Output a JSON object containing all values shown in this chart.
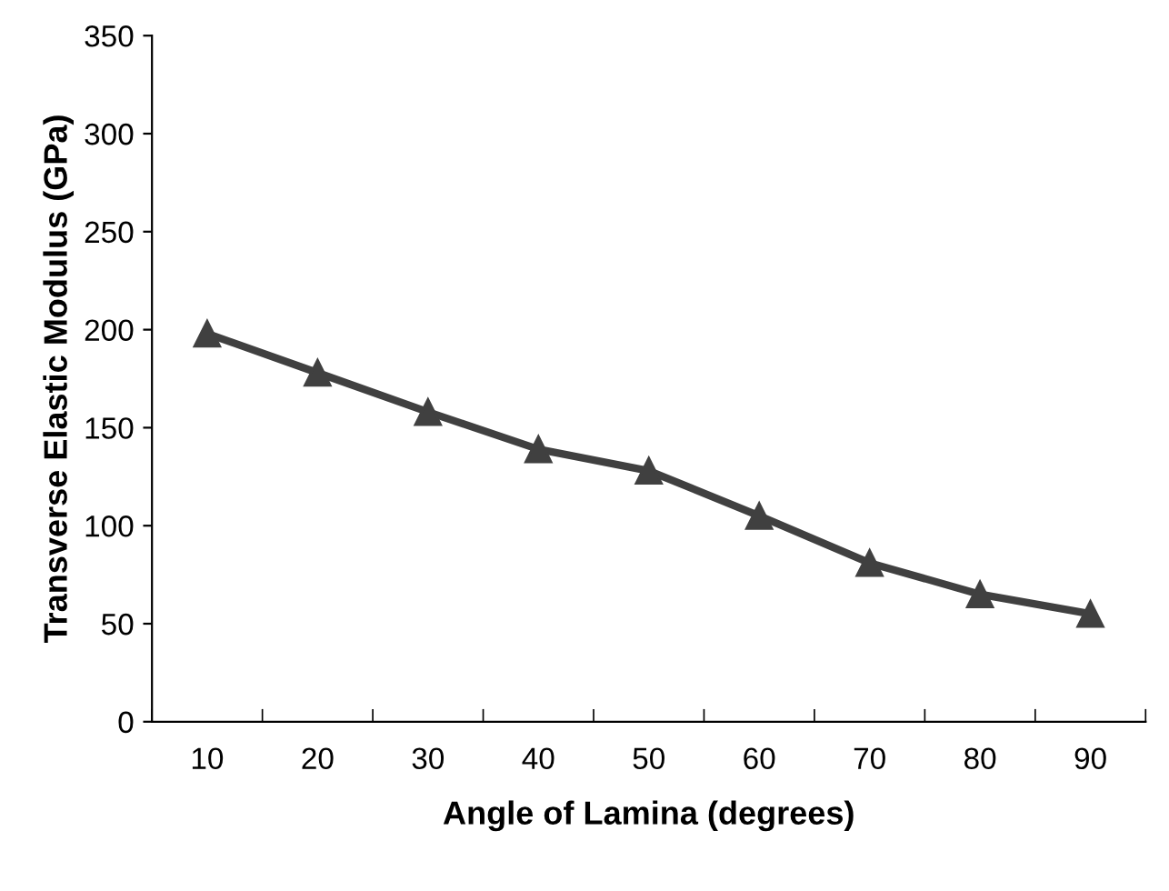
{
  "chart_data": {
    "type": "line",
    "xlabel": "Angle of Lamina (degrees)",
    "ylabel": "Transverse Elastic Modulus (GPa)",
    "categories": [
      "10",
      "20",
      "30",
      "40",
      "50",
      "60",
      "70",
      "80",
      "90"
    ],
    "series": [
      {
        "color": "#404040",
        "values": [
          198,
          178,
          158,
          139,
          128,
          105,
          81,
          65,
          55
        ]
      }
    ],
    "ylim": [
      0,
      350
    ],
    "yticks": [
      0,
      50,
      100,
      150,
      200,
      250,
      300,
      350
    ],
    "marker": "triangle",
    "line_style": "solid",
    "grid": false,
    "legend": false
  }
}
